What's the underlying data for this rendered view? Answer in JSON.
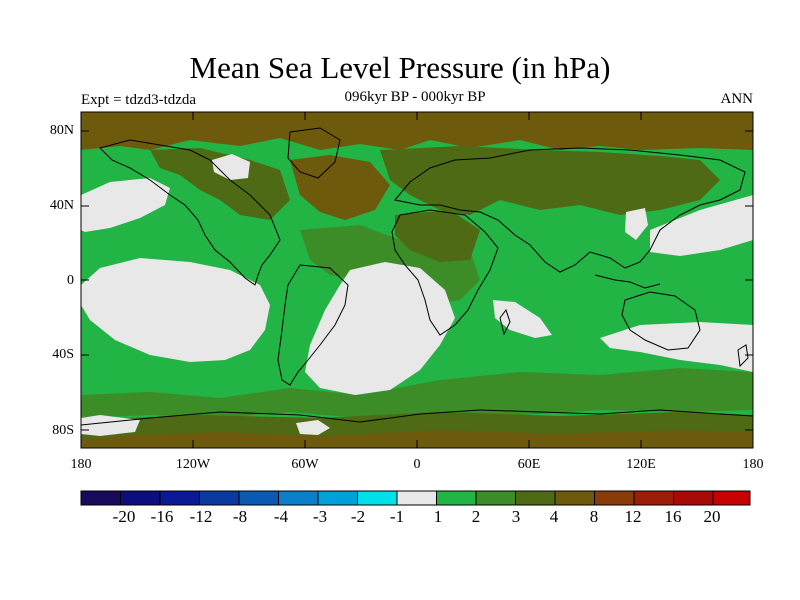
{
  "title": "Mean Sea Level Pressure (in hPa)",
  "subtitle": "096kyr BP - 000kyr BP",
  "experiment": "Expt = tdzd3-tdzda",
  "season": "ANN",
  "lat_labels": [
    "80N",
    "40N",
    "0",
    "40S",
    "80S"
  ],
  "lon_labels": [
    "180",
    "120W",
    "60W",
    "0",
    "60E",
    "120E",
    "180"
  ],
  "colorbar": {
    "labels": [
      "-20",
      "-16",
      "-12",
      "-8",
      "-4",
      "-3",
      "-2",
      "-1",
      "1",
      "2",
      "3",
      "4",
      "8",
      "12",
      "16",
      "20"
    ],
    "colors": [
      "#1a0a5e",
      "#0d0d80",
      "#0a1a96",
      "#0a3aa0",
      "#0a5ab4",
      "#0a7ec8",
      "#00a0d8",
      "#00e0e8",
      "#e8e8e8",
      "#22b444",
      "#3c8c28",
      "#4e6a14",
      "#6e5a0c",
      "#8a3c08",
      "#9a1e08",
      "#a80a08",
      "#c80000"
    ]
  },
  "map_colors": {
    "neutral": "#e8e8e8",
    "level2": "#22b444",
    "level3": "#3c8c28",
    "level4": "#4e6a14",
    "level8": "#6e5a0c",
    "coast": "#000000"
  },
  "chart_data": {
    "type": "heatmap",
    "title": "Mean Sea Level Pressure (in hPa)",
    "subtitle": "096kyr BP - 000kyr BP",
    "x_range": [
      -180,
      180
    ],
    "y_range": [
      -90,
      90
    ],
    "xticks": [
      -180,
      -120,
      -60,
      0,
      60,
      120,
      180
    ],
    "yticks": [
      80,
      40,
      0,
      -40,
      -80
    ],
    "contour_levels": [
      -20,
      -16,
      -12,
      -8,
      -4,
      -3,
      -2,
      -1,
      1,
      2,
      3,
      4,
      8,
      12,
      16,
      20
    ],
    "colorbar_position": "bottom"
  }
}
